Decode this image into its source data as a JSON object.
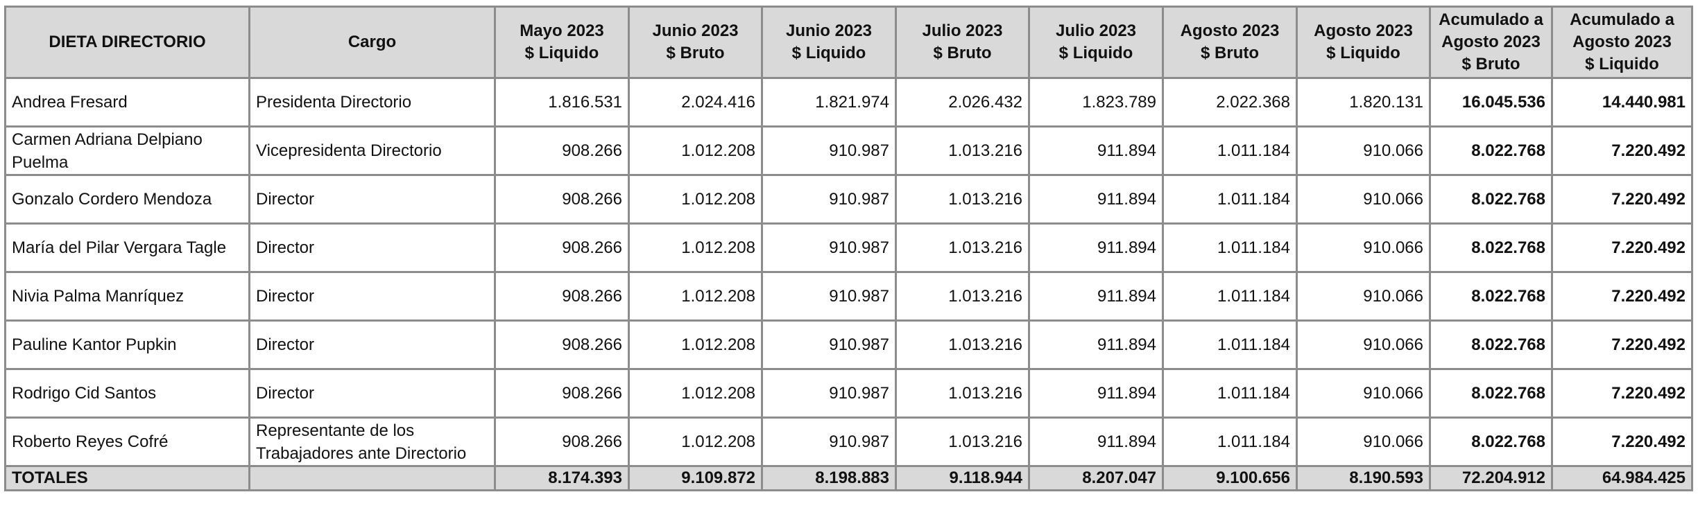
{
  "headers": [
    "DIETA DIRECTORIO",
    "Cargo",
    "Mayo 2023\n$ Liquido",
    "Junio 2023\n$ Bruto",
    "Junio 2023\n$ Liquido",
    "Julio 2023\n$ Bruto",
    "Julio 2023\n$ Liquido",
    "Agosto 2023\n$ Bruto",
    "Agosto 2023\n$ Liquido",
    "Acumulado a\nAgosto 2023\n$ Bruto",
    "Acumulado a\nAgosto 2023\n$ Liquido"
  ],
  "rows": [
    {
      "name": "Andrea Fresard",
      "cargo": "Presidenta Directorio",
      "values": [
        "1.816.531",
        "2.024.416",
        "1.821.974",
        "2.026.432",
        "1.823.789",
        "2.022.368",
        "1.820.131",
        "16.045.536",
        "14.440.981"
      ]
    },
    {
      "name": "Carmen Adriana Delpiano Puelma",
      "cargo": "Vicepresidenta Directorio",
      "values": [
        "908.266",
        "1.012.208",
        "910.987",
        "1.013.216",
        "911.894",
        "1.011.184",
        "910.066",
        "8.022.768",
        "7.220.492"
      ]
    },
    {
      "name": "Gonzalo Cordero Mendoza",
      "cargo": "Director",
      "values": [
        "908.266",
        "1.012.208",
        "910.987",
        "1.013.216",
        "911.894",
        "1.011.184",
        "910.066",
        "8.022.768",
        "7.220.492"
      ]
    },
    {
      "name": "María del Pilar Vergara Tagle",
      "cargo": "Director",
      "values": [
        "908.266",
        "1.012.208",
        "910.987",
        "1.013.216",
        "911.894",
        "1.011.184",
        "910.066",
        "8.022.768",
        "7.220.492"
      ]
    },
    {
      "name": "Nivia Palma Manríquez",
      "cargo": "Director",
      "values": [
        "908.266",
        "1.012.208",
        "910.987",
        "1.013.216",
        "911.894",
        "1.011.184",
        "910.066",
        "8.022.768",
        "7.220.492"
      ]
    },
    {
      "name": "Pauline Kantor Pupkin",
      "cargo": "Director",
      "values": [
        "908.266",
        "1.012.208",
        "910.987",
        "1.013.216",
        "911.894",
        "1.011.184",
        "910.066",
        "8.022.768",
        "7.220.492"
      ]
    },
    {
      "name": "Rodrigo Cid Santos",
      "cargo": "Director",
      "values": [
        "908.266",
        "1.012.208",
        "910.987",
        "1.013.216",
        "911.894",
        "1.011.184",
        "910.066",
        "8.022.768",
        "7.220.492"
      ]
    },
    {
      "name": "Roberto Reyes Cofré",
      "cargo": "Representante de los Trabajadores ante Directorio",
      "values": [
        "908.266",
        "1.012.208",
        "910.987",
        "1.013.216",
        "911.894",
        "1.011.184",
        "910.066",
        "8.022.768",
        "7.220.492"
      ]
    }
  ],
  "totals": {
    "label": "TOTALES",
    "cargo": "",
    "values": [
      "8.174.393",
      "9.109.872",
      "8.198.883",
      "9.118.944",
      "8.207.047",
      "9.100.656",
      "8.190.593",
      "72.204.912",
      "64.984.425"
    ]
  }
}
